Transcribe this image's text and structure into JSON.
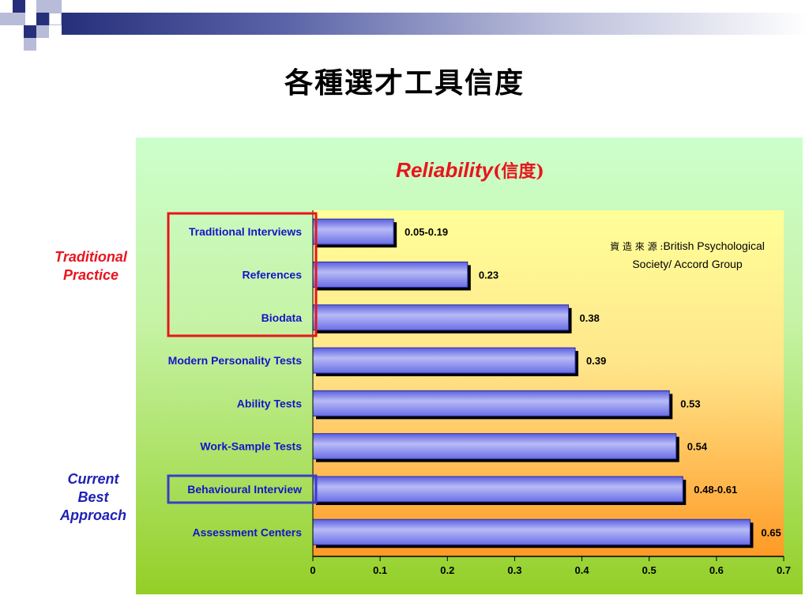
{
  "slide": {
    "title": "各種選才工具信度"
  },
  "side_labels": {
    "traditional": [
      "Traditional",
      "Practice"
    ],
    "current": [
      "Current",
      "Best",
      "Approach"
    ]
  },
  "source_note": {
    "prefix": "資 造 來 源 :",
    "line1": "British Psychological",
    "line2": "Society/ Accord Group"
  },
  "colors": {
    "bar_fill": "#9da0ee",
    "bar_fill_dark": "#5a5ee0",
    "bar_shadow": "#000000",
    "category_text": "#1414c8",
    "title_red": "#e8141e",
    "traditional_box": "#e8141e",
    "current_box": "#3c3cc8"
  },
  "chart_data": {
    "type": "bar",
    "orientation": "horizontal",
    "title": "Reliability",
    "title_suffix": "(信度)",
    "categories": [
      "Traditional Interviews",
      "References",
      "Biodata",
      "Modern Personality Tests",
      "Ability Tests",
      "Work-Sample Tests",
      "Behavioural Interview",
      "Assessment Centers"
    ],
    "values": [
      0.12,
      0.23,
      0.38,
      0.39,
      0.53,
      0.54,
      0.55,
      0.65
    ],
    "data_labels": [
      "0.05-0.19",
      "0.23",
      "0.38",
      "0.39",
      "0.53",
      "0.54",
      "0.48-0.61",
      "0.65"
    ],
    "xlim": [
      0,
      0.7
    ],
    "xticks": [
      "0",
      "0.1",
      "0.2",
      "0.3",
      "0.4",
      "0.5",
      "0.6",
      "0.7"
    ],
    "xtick_values": [
      0,
      0.1,
      0.2,
      0.3,
      0.4,
      0.5,
      0.6,
      0.7
    ],
    "grid": false,
    "legend": "none",
    "highlight_groups": [
      {
        "name": "traditional",
        "start": 0,
        "end": 2
      },
      {
        "name": "current",
        "start": 6,
        "end": 6
      }
    ]
  }
}
